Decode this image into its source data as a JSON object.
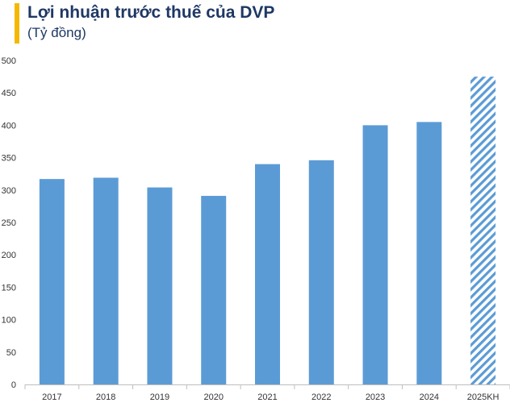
{
  "title": "Lợi nhuận trước thuế của DVP",
  "subtitle": "(Tỷ đồng)",
  "colors": {
    "accent": "#f5b800",
    "bar": "#5b9bd5",
    "title": "#1f3864",
    "axis": "#bfbfbf"
  },
  "chart_data": {
    "type": "bar",
    "title": "Lợi nhuận trước thuế của DVP",
    "subtitle": "(Tỷ đồng)",
    "xlabel": "",
    "ylabel": "",
    "ylim": [
      0,
      500
    ],
    "yticks": [
      0,
      50,
      100,
      150,
      200,
      250,
      300,
      350,
      400,
      450,
      500
    ],
    "grid": false,
    "legend": "none",
    "categories": [
      "2017",
      "2018",
      "2019",
      "2020",
      "2021",
      "2022",
      "2023",
      "2024",
      "2025KH"
    ],
    "values": [
      317,
      319,
      304,
      291,
      340,
      346,
      400,
      405,
      475
    ],
    "styles": [
      "solid",
      "solid",
      "solid",
      "solid",
      "solid",
      "solid",
      "solid",
      "solid",
      "hatched"
    ]
  }
}
